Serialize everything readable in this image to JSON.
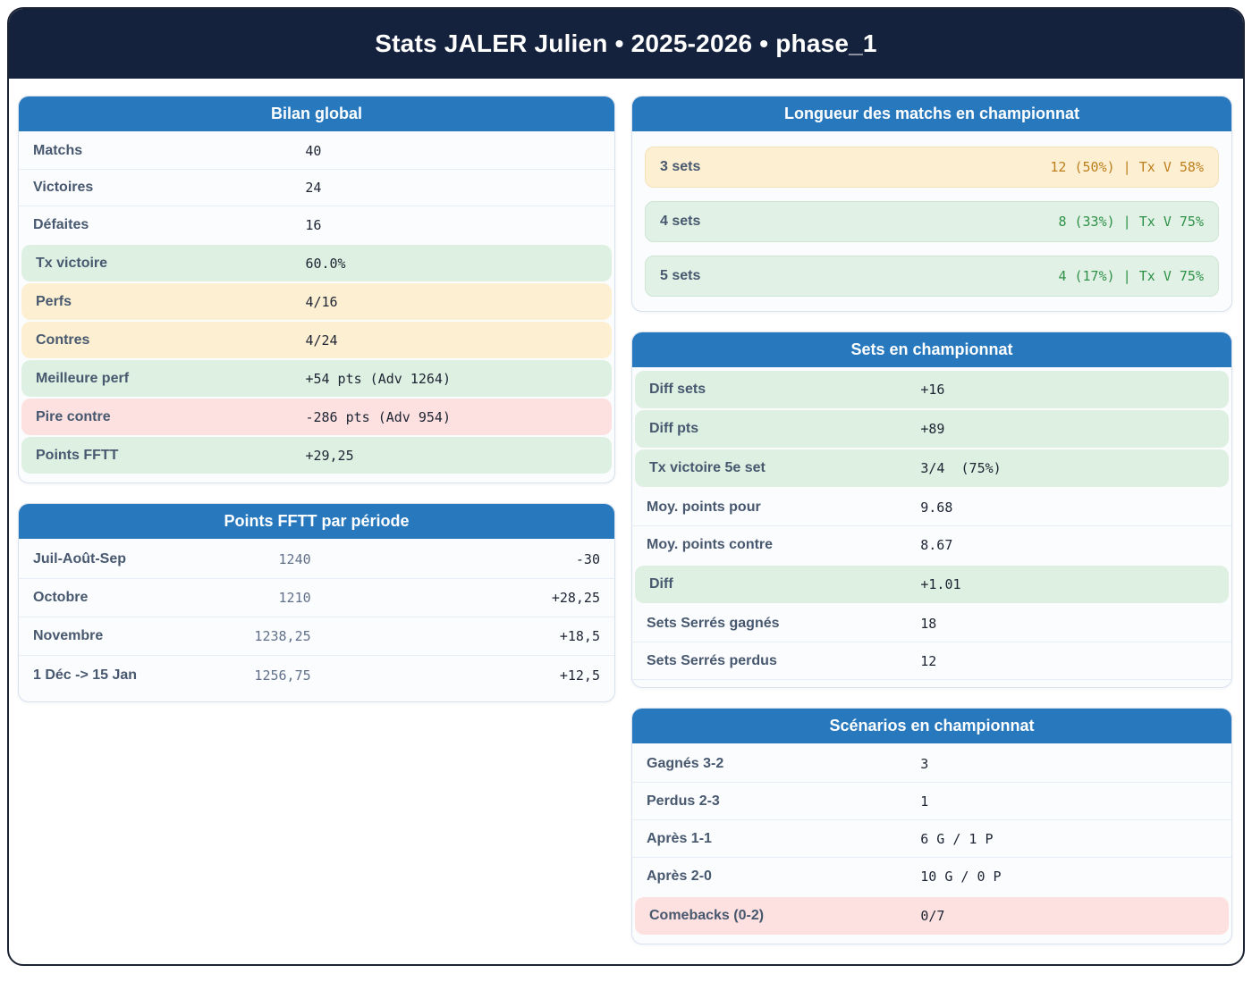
{
  "title": "Stats JALER Julien • 2025-2026 • phase_1",
  "colors": {
    "accent_blue": "#2878be",
    "navy": "#15223d",
    "highlight_green": "#def0e2",
    "highlight_yellow": "#fdf0d2",
    "highlight_pink": "#fde1e0",
    "text_green": "#2e9148",
    "text_orange": "#bd7e1d"
  },
  "cards": {
    "bilan": {
      "title": "Bilan global",
      "rows": [
        {
          "label": "Matchs",
          "value": "40",
          "highlight": "none"
        },
        {
          "label": "Victoires",
          "value": "24",
          "highlight": "none"
        },
        {
          "label": "Défaites",
          "value": "16",
          "highlight": "none"
        },
        {
          "label": "Tx victoire",
          "value": "60.0%",
          "highlight": "green"
        },
        {
          "label": "Perfs",
          "value": "4/16",
          "highlight": "yellow"
        },
        {
          "label": "Contres",
          "value": "4/24",
          "highlight": "yellow"
        },
        {
          "label": "Meilleure perf",
          "value": "+54 pts (Adv 1264)",
          "highlight": "green"
        },
        {
          "label": "Pire contre",
          "value": "-286 pts (Adv 954)",
          "highlight": "pink"
        },
        {
          "label": "Points FFTT",
          "value": "+29,25",
          "highlight": "green"
        }
      ]
    },
    "periodes": {
      "title": "Points FFTT par période",
      "rows": [
        {
          "label": "Juil-Août-Sep",
          "points": "1240",
          "delta": "-30"
        },
        {
          "label": "Octobre",
          "points": "1210",
          "delta": "+28,25"
        },
        {
          "label": "Novembre",
          "points": "1238,25",
          "delta": "+18,5"
        },
        {
          "label": "1 Déc -> 15 Jan",
          "points": "1256,75",
          "delta": "+12,5"
        }
      ]
    },
    "longueur": {
      "title": "Longueur des matchs en championnat",
      "rows": [
        {
          "label": "3 sets",
          "value": "12 (50%) | Tx V 58%",
          "highlight": "yellow"
        },
        {
          "label": "4 sets",
          "value": "8 (33%) | Tx V 75%",
          "highlight": "green"
        },
        {
          "label": "5 sets",
          "value": "4 (17%) | Tx V 75%",
          "highlight": "green"
        }
      ]
    },
    "sets": {
      "title": "Sets en championnat",
      "rows": [
        {
          "label": "Diff sets",
          "value": "+16",
          "highlight": "green"
        },
        {
          "label": "Diff pts",
          "value": "+89",
          "highlight": "green"
        },
        {
          "label": "Tx victoire 5e set",
          "value": "3/4  (75%)",
          "highlight": "green"
        },
        {
          "label": "Moy. points pour",
          "value": "9.68",
          "highlight": "none"
        },
        {
          "label": "Moy. points contre",
          "value": "8.67",
          "highlight": "none"
        },
        {
          "label": "Diff",
          "value": "+1.01",
          "highlight": "green"
        },
        {
          "label": "Sets Serrés gagnés",
          "value": "18",
          "highlight": "none"
        },
        {
          "label": "Sets Serrés perdus",
          "value": "12",
          "highlight": "none"
        }
      ]
    },
    "scenarios": {
      "title": "Scénarios en championnat",
      "rows": [
        {
          "label": "Gagnés 3-2",
          "value": "3",
          "highlight": "none"
        },
        {
          "label": "Perdus 2-3",
          "value": "1",
          "highlight": "none"
        },
        {
          "label": "Après 1-1",
          "value": "6 G / 1 P",
          "highlight": "none"
        },
        {
          "label": "Après 2-0",
          "value": "10 G / 0 P",
          "highlight": "none"
        },
        {
          "label": "Comebacks (0-2)",
          "value": "0/7",
          "highlight": "pink"
        }
      ]
    }
  }
}
